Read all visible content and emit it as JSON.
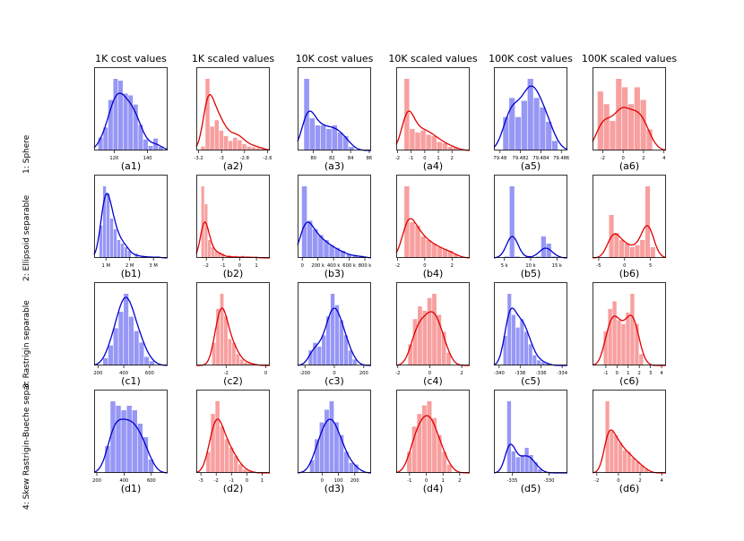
{
  "figure": {
    "columns": [
      "1K cost values",
      "1K scaled values",
      "10K cost values",
      "10K scaled values",
      "100K cost values",
      "100K scaled values"
    ],
    "rows": [
      "1: Sphere",
      "2: Ellipsoid separable",
      "3: Rastrigin separable",
      "4: Skew Rastrigin-Bueche separ"
    ],
    "colors": {
      "blue": "#0000cc",
      "blue_fill": "#8c8cf5",
      "red": "#e00000",
      "red_fill": "#f79595"
    }
  },
  "chart_data": [
    {
      "id": "a1",
      "type": "bar",
      "caption": "(a1)",
      "color": "blue",
      "xlim": [
        108,
        152
      ],
      "bins": [
        112,
        115,
        118,
        121,
        124,
        127,
        130,
        133,
        136,
        139,
        142,
        145,
        148
      ],
      "values": [
        0.14,
        0.25,
        0.55,
        0.78,
        0.76,
        0.62,
        0.6,
        0.5,
        0.28,
        0.12,
        0.05,
        0.13,
        0.04
      ],
      "kde_peak": 0.8,
      "ticks": [
        {
          "v": 120,
          "label": "120"
        },
        {
          "v": 140,
          "label": "140"
        }
      ]
    },
    {
      "id": "a2",
      "type": "bar",
      "caption": "(a2)",
      "color": "red",
      "xlim": [
        -3.22,
        -2.58
      ],
      "bins": [
        -3.16,
        -3.12,
        -3.08,
        -3.04,
        -3.0,
        -2.96,
        -2.92,
        -2.88,
        -2.84,
        -2.8,
        -2.76,
        -2.72,
        -2.68,
        -2.64
      ],
      "values": [
        0.05,
        0.9,
        0.3,
        0.38,
        0.25,
        0.18,
        0.12,
        0.16,
        0.13,
        0.08,
        0.05,
        0.04,
        0.03,
        0.02
      ],
      "kde_peak": 0.78,
      "ticks": [
        {
          "v": -3.2,
          "label": "-3.2"
        },
        {
          "v": -3.0,
          "label": "-3"
        },
        {
          "v": -2.8,
          "label": "-2.8"
        },
        {
          "v": -2.6,
          "label": "-2.6"
        }
      ]
    },
    {
      "id": "a3",
      "type": "bar",
      "caption": "(a3)",
      "color": "blue",
      "xlim": [
        78.3,
        86.2
      ],
      "bins": [
        79.3,
        79.9,
        80.5,
        81.1,
        81.7,
        82.3,
        82.9,
        83.5,
        84.1
      ],
      "values": [
        1.0,
        0.45,
        0.35,
        0.35,
        0.3,
        0.35,
        0.25,
        0.2,
        0.05
      ],
      "kde_peak": 0.55,
      "ticks": [
        {
          "v": 80,
          "label": "80"
        },
        {
          "v": 82,
          "label": "82"
        },
        {
          "v": 84,
          "label": "84"
        },
        {
          "v": 86,
          "label": "86"
        }
      ]
    },
    {
      "id": "a4",
      "type": "bar",
      "caption": "(a4)",
      "color": "red",
      "xlim": [
        -2.1,
        3.3
      ],
      "bins": [
        -1.3,
        -0.9,
        -0.5,
        -0.1,
        0.3,
        0.7,
        1.1,
        1.5,
        1.9,
        2.3
      ],
      "values": [
        1.0,
        0.3,
        0.25,
        0.28,
        0.22,
        0.2,
        0.12,
        0.1,
        0.05,
        0.04
      ],
      "kde_peak": 0.55,
      "ticks": [
        {
          "v": -2,
          "label": "-2"
        },
        {
          "v": -1,
          "label": "-1"
        },
        {
          "v": 0,
          "label": "0"
        },
        {
          "v": 1,
          "label": "1"
        },
        {
          "v": 2,
          "label": "2"
        }
      ]
    },
    {
      "id": "a5",
      "type": "bar",
      "caption": "(a5)",
      "color": "blue",
      "xlim": [
        79.4794,
        79.4866
      ],
      "bins": [
        79.4806,
        79.4812,
        79.4818,
        79.4824,
        79.483,
        79.4836,
        79.4842,
        79.4848,
        79.4854
      ],
      "values": [
        0.35,
        0.55,
        0.35,
        0.52,
        0.75,
        0.55,
        0.45,
        0.3,
        0.1
      ],
      "kde_peak": 0.9,
      "ticks": [
        {
          "v": 79.48,
          "label": "79.48"
        },
        {
          "v": 79.482,
          "label": "79.482"
        },
        {
          "v": 79.484,
          "label": "79.484"
        },
        {
          "v": 79.486,
          "label": "79.486"
        }
      ]
    },
    {
      "id": "a6",
      "type": "bar",
      "caption": "(a6)",
      "color": "red",
      "xlim": [
        -3.0,
        4.2
      ],
      "bins": [
        -2.2,
        -1.6,
        -1.0,
        -0.4,
        0.2,
        0.8,
        1.4,
        2.0,
        2.6
      ],
      "values": [
        0.7,
        0.55,
        0.35,
        0.85,
        0.75,
        0.55,
        0.75,
        0.6,
        0.25
      ],
      "kde_peak": 0.6,
      "ticks": [
        {
          "v": -2,
          "label": "-2"
        },
        {
          "v": 0,
          "label": "0"
        },
        {
          "v": 2,
          "label": "2"
        },
        {
          "v": 4,
          "label": "4"
        }
      ]
    },
    {
      "id": "b1",
      "type": "bar",
      "caption": "(b1)",
      "color": "blue",
      "xlim": [
        0.5,
        3.6
      ],
      "bins": [
        0.8,
        0.95,
        1.1,
        1.25,
        1.4,
        1.55,
        1.7,
        1.85,
        2.0,
        2.3,
        2.6,
        2.9,
        3.2
      ],
      "values": [
        0.45,
        1.0,
        0.9,
        0.55,
        0.4,
        0.25,
        0.2,
        0.15,
        0.1,
        0.06,
        0.03,
        0.02,
        0.02
      ],
      "kde_peak": 0.9,
      "ticks": [
        {
          "v": 1,
          "label": "1 M"
        },
        {
          "v": 2,
          "label": "2 M"
        },
        {
          "v": 3,
          "label": "3 M"
        }
      ]
    },
    {
      "id": "b2",
      "type": "bar",
      "caption": "(b2)",
      "color": "red",
      "xlim": [
        -2.6,
        1.8
      ],
      "bins": [
        -2.2,
        -2.0,
        -1.8,
        -1.6,
        -1.4,
        -1.2,
        -1.0,
        -0.6,
        -0.2,
        0.2,
        0.6,
        1.0
      ],
      "values": [
        1.0,
        0.75,
        0.25,
        0.15,
        0.1,
        0.08,
        0.06,
        0.04,
        0.03,
        0.03,
        0.02,
        0.02
      ],
      "kde_peak": 0.5,
      "ticks": [
        {
          "v": -2,
          "label": "-2"
        },
        {
          "v": -1,
          "label": "-1"
        },
        {
          "v": 0,
          "label": "0"
        },
        {
          "v": 1,
          "label": "1"
        }
      ]
    },
    {
      "id": "b3",
      "type": "bar",
      "caption": "(b3)",
      "color": "blue",
      "xlim": [
        -60,
        880
      ],
      "bins": [
        30,
        100,
        170,
        240,
        310,
        380,
        450,
        520,
        600,
        680,
        760
      ],
      "values": [
        1.0,
        0.52,
        0.4,
        0.32,
        0.25,
        0.18,
        0.14,
        0.1,
        0.05,
        0.04,
        0.03
      ],
      "kde_peak": 0.5,
      "ticks": [
        {
          "v": 0,
          "label": "0"
        },
        {
          "v": 200,
          "label": "200 k"
        },
        {
          "v": 400,
          "label": "400 k"
        },
        {
          "v": 600,
          "label": "600 k"
        },
        {
          "v": 800,
          "label": "800 k"
        }
      ]
    },
    {
      "id": "b4",
      "type": "bar",
      "caption": "(b4)",
      "color": "red",
      "xlim": [
        -2.1,
        3.3
      ],
      "bins": [
        -1.3,
        -0.9,
        -0.5,
        -0.1,
        0.3,
        0.7,
        1.1,
        1.5,
        1.9,
        2.3
      ],
      "values": [
        1.0,
        0.5,
        0.45,
        0.3,
        0.25,
        0.2,
        0.15,
        0.12,
        0.1,
        0.05
      ],
      "kde_peak": 0.55,
      "ticks": [
        {
          "v": -2,
          "label": "-2"
        },
        {
          "v": 0,
          "label": "0"
        },
        {
          "v": 2,
          "label": "2"
        }
      ]
    },
    {
      "id": "b5",
      "type": "bar",
      "caption": "(b5)",
      "color": "blue",
      "xlim": [
        3,
        17
      ],
      "bins": [
        5.5,
        6.5,
        7.5,
        9.5,
        11.5,
        12.5,
        13.5,
        14.5
      ],
      "values": [
        0.02,
        1.0,
        0.02,
        0.02,
        0.02,
        0.3,
        0.2,
        0.02
      ],
      "kde_peak": 0.3,
      "ticks": [
        {
          "v": 5,
          "label": "5 k"
        },
        {
          "v": 10,
          "label": "10 k"
        },
        {
          "v": 15,
          "label": "15 k"
        }
      ]
    },
    {
      "id": "b6",
      "type": "bar",
      "caption": "(b6)",
      "color": "red",
      "xlim": [
        -6.2,
        8
      ],
      "bins": [
        -2.5,
        -1.5,
        -0.5,
        0.5,
        1.5,
        2.5,
        3.5,
        4.5,
        5.5
      ],
      "values": [
        0.6,
        0.35,
        0.25,
        0.2,
        0.15,
        0.18,
        0.25,
        1.0,
        0.15
      ],
      "kde_peak": 0.45,
      "ticks": [
        {
          "v": -5,
          "label": "-5"
        },
        {
          "v": 0,
          "label": "0"
        },
        {
          "v": 5,
          "label": "5"
        }
      ]
    },
    {
      "id": "c1",
      "type": "bar",
      "caption": "(c1)",
      "color": "blue",
      "xlim": [
        170,
        740
      ],
      "bins": [
        260,
        300,
        340,
        380,
        420,
        460,
        500,
        540,
        580,
        620
      ],
      "values": [
        0.1,
        0.28,
        0.52,
        0.75,
        1.0,
        0.68,
        0.48,
        0.32,
        0.12,
        0.06
      ],
      "kde_peak": 0.95,
      "ticks": [
        {
          "v": 200,
          "label": "200"
        },
        {
          "v": 400,
          "label": "400"
        },
        {
          "v": 600,
          "label": "600"
        }
      ]
    },
    {
      "id": "c2",
      "type": "bar",
      "caption": "(c2)",
      "color": "red",
      "xlim": [
        -3.5,
        0.2
      ],
      "bins": [
        -2.6,
        -2.4,
        -2.2,
        -2.0,
        -1.8,
        -1.6,
        -1.4,
        -1.2,
        -1.0,
        -0.8,
        -0.6
      ],
      "values": [
        0.3,
        0.75,
        0.95,
        0.65,
        0.35,
        0.3,
        0.15,
        0.08,
        0.04,
        0.03,
        0.02
      ],
      "kde_peak": 0.8,
      "ticks": [
        {
          "v": -2,
          "label": "-2"
        },
        {
          "v": 0,
          "label": "0"
        }
      ]
    },
    {
      "id": "c3",
      "type": "bar",
      "caption": "(c3)",
      "color": "blue",
      "xlim": [
        -250,
        250
      ],
      "bins": [
        -160,
        -130,
        -100,
        -70,
        -40,
        -10,
        20,
        50,
        80,
        110,
        140
      ],
      "values": [
        0.2,
        0.3,
        0.25,
        0.4,
        0.65,
        0.95,
        0.8,
        0.6,
        0.4,
        0.2,
        0.08
      ],
      "kde_peak": 0.8,
      "ticks": [
        {
          "v": -200,
          "label": "-200"
        },
        {
          "v": 0,
          "label": "0"
        },
        {
          "v": 200,
          "label": "200"
        }
      ]
    },
    {
      "id": "c4",
      "type": "bar",
      "caption": "(c4)",
      "color": "red",
      "xlim": [
        -2.1,
        2.5
      ],
      "bins": [
        -1.2,
        -0.9,
        -0.6,
        -0.3,
        0,
        0.3,
        0.6,
        0.9,
        1.2
      ],
      "values": [
        0.25,
        0.55,
        0.7,
        0.65,
        0.8,
        0.85,
        0.6,
        0.4,
        0.15
      ],
      "kde_peak": 0.75,
      "ticks": [
        {
          "v": -2,
          "label": "-2"
        },
        {
          "v": 0,
          "label": "0"
        },
        {
          "v": 2,
          "label": "2"
        }
      ]
    },
    {
      "id": "c5",
      "type": "bar",
      "caption": "(c5)",
      "color": "blue",
      "xlim": [
        -340.5,
        -333.5
      ],
      "bins": [
        -339.4,
        -339.0,
        -338.6,
        -338.2,
        -337.8,
        -337.4,
        -337.0,
        -336.6,
        -336.2,
        -335.8,
        -335.4
      ],
      "values": [
        0.35,
        0.85,
        0.6,
        0.45,
        0.55,
        0.4,
        0.25,
        0.12,
        0.06,
        0.04,
        0.02
      ],
      "kde_peak": 0.8,
      "ticks": [
        {
          "v": -340,
          "label": "-340"
        },
        {
          "v": -338,
          "label": "-338"
        },
        {
          "v": -336,
          "label": "-336"
        },
        {
          "v": -334,
          "label": "-334"
        }
      ]
    },
    {
      "id": "c6",
      "type": "bar",
      "caption": "(c6)",
      "color": "red",
      "xlim": [
        -2.2,
        4.4
      ],
      "bins": [
        -1.0,
        -0.6,
        -0.2,
        0.2,
        0.6,
        1.0,
        1.4,
        1.8,
        2.2
      ],
      "values": [
        0.45,
        0.75,
        0.85,
        0.6,
        0.55,
        0.7,
        0.95,
        0.55,
        0.15
      ],
      "kde_peak": 0.7,
      "ticks": [
        {
          "v": -1,
          "label": "-1"
        },
        {
          "v": 0,
          "label": "0"
        },
        {
          "v": 1,
          "label": "1"
        },
        {
          "v": 2,
          "label": "2"
        },
        {
          "v": 3,
          "label": "3"
        },
        {
          "v": 4,
          "label": "4"
        }
      ]
    },
    {
      "id": "d1",
      "type": "bar",
      "caption": "(d1)",
      "color": "blue",
      "xlim": [
        180,
        720
      ],
      "bins": [
        280,
        320,
        360,
        400,
        440,
        480,
        520,
        560,
        600
      ],
      "values": [
        0.3,
        0.8,
        0.75,
        0.7,
        0.75,
        0.7,
        0.55,
        0.4,
        0.15
      ],
      "kde_peak": 0.75,
      "ticks": [
        {
          "v": 200,
          "label": "200"
        },
        {
          "v": 400,
          "label": "400"
        },
        {
          "v": 600,
          "label": "600"
        }
      ]
    },
    {
      "id": "d2",
      "type": "bar",
      "caption": "(d2)",
      "color": "red",
      "xlim": [
        -3.3,
        1.5
      ],
      "bins": [
        -2.5,
        -2.2,
        -1.9,
        -1.6,
        -1.3,
        -1.0,
        -0.7,
        -0.4,
        -0.1,
        0.2
      ],
      "values": [
        0.25,
        0.7,
        0.85,
        0.55,
        0.4,
        0.3,
        0.2,
        0.1,
        0.04,
        0.02
      ],
      "kde_peak": 0.75,
      "ticks": [
        {
          "v": -3,
          "label": "-3"
        },
        {
          "v": -2,
          "label": "-2"
        },
        {
          "v": -1,
          "label": "-1"
        },
        {
          "v": 0,
          "label": "0"
        },
        {
          "v": 1,
          "label": "1"
        }
      ]
    },
    {
      "id": "d3",
      "type": "bar",
      "caption": "(d3)",
      "color": "blue",
      "xlim": [
        -150,
        300
      ],
      "bins": [
        -60,
        -30,
        0,
        30,
        60,
        90,
        120,
        150,
        180,
        210
      ],
      "values": [
        0.15,
        0.4,
        0.6,
        0.75,
        0.85,
        0.6,
        0.45,
        0.25,
        0.12,
        0.1
      ],
      "kde_peak": 0.75,
      "ticks": [
        {
          "v": 0,
          "label": "0"
        },
        {
          "v": 100,
          "label": "100"
        },
        {
          "v": 200,
          "label": "200"
        }
      ]
    },
    {
      "id": "d4",
      "type": "bar",
      "caption": "(d4)",
      "color": "red",
      "xlim": [
        -1.8,
        2.6
      ],
      "bins": [
        -1.0,
        -0.7,
        -0.4,
        -0.1,
        0.2,
        0.5,
        0.8,
        1.1,
        1.4
      ],
      "values": [
        0.25,
        0.55,
        0.7,
        0.8,
        0.85,
        0.65,
        0.45,
        0.25,
        0.1
      ],
      "kde_peak": 0.8,
      "ticks": [
        {
          "v": -1,
          "label": "-1"
        },
        {
          "v": 0,
          "label": "0"
        },
        {
          "v": 1,
          "label": "1"
        },
        {
          "v": 2,
          "label": "2"
        }
      ]
    },
    {
      "id": "d5",
      "type": "bar",
      "caption": "(d5)",
      "color": "blue",
      "xlim": [
        -337.5,
        -327.5
      ],
      "bins": [
        -335.4,
        -334.8,
        -334.2,
        -333.6,
        -333.0,
        -332.4,
        -331.8,
        -331.2
      ],
      "values": [
        1.0,
        0.3,
        0.22,
        0.25,
        0.35,
        0.25,
        0.15,
        0.05
      ],
      "kde_peak": 0.4,
      "ticks": [
        {
          "v": -335,
          "label": "-335"
        },
        {
          "v": -330,
          "label": "-330"
        }
      ]
    },
    {
      "id": "d6",
      "type": "bar",
      "caption": "(d6)",
      "color": "red",
      "xlim": [
        -2.4,
        4.4
      ],
      "bins": [
        -1.0,
        -0.6,
        -0.2,
        0.2,
        0.6,
        1.0,
        1.4,
        1.8,
        2.2,
        2.6
      ],
      "values": [
        0.95,
        0.55,
        0.5,
        0.4,
        0.3,
        0.28,
        0.2,
        0.15,
        0.1,
        0.05
      ],
      "kde_peak": 0.6,
      "ticks": [
        {
          "v": -2,
          "label": "-2"
        },
        {
          "v": 0,
          "label": "0"
        },
        {
          "v": 2,
          "label": "2"
        },
        {
          "v": 4,
          "label": "4"
        }
      ]
    }
  ]
}
